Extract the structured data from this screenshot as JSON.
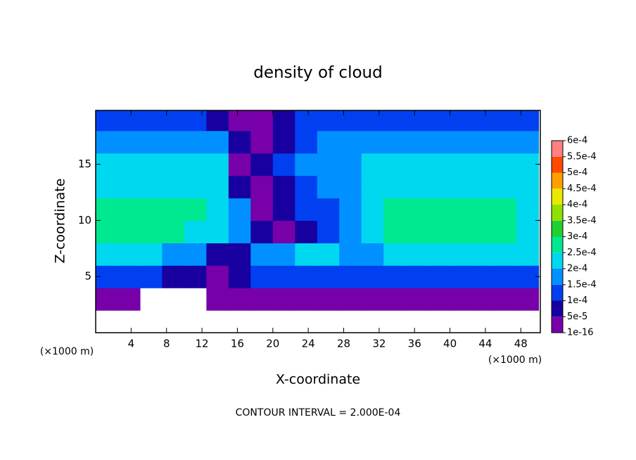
{
  "chart_data": {
    "type": "contourf",
    "title": "density of cloud",
    "xlabel": "X-coordinate",
    "ylabel": "Z-coordinate",
    "xunit_left": "(×1000 m)",
    "xunit_right": "(×1000 m)",
    "footnote": "CONTOUR INTERVAL = 2.000E-04",
    "xlim": [
      0,
      50.2
    ],
    "ylim": [
      0,
      19.8
    ],
    "xticks": [
      4,
      8,
      12,
      16,
      20,
      24,
      28,
      32,
      36,
      40,
      44,
      48
    ],
    "yticks": [
      5,
      10,
      15
    ],
    "colorbar_ticks": [
      {
        "value": 1e-16,
        "label": "1e-16"
      },
      {
        "value": 5e-05,
        "label": "5e-5"
      },
      {
        "value": 0.0001,
        "label": "1e-4"
      },
      {
        "value": 0.00015,
        "label": "1.5e-4"
      },
      {
        "value": 0.0002,
        "label": "2e-4"
      },
      {
        "value": 0.00025,
        "label": "2.5e-4"
      },
      {
        "value": 0.0003,
        "label": "3e-4"
      },
      {
        "value": 0.00035,
        "label": "3.5e-4"
      },
      {
        "value": 0.0004,
        "label": "4e-4"
      },
      {
        "value": 0.00045,
        "label": "4.5e-4"
      },
      {
        "value": 0.0005,
        "label": "5e-4"
      },
      {
        "value": 0.00055,
        "label": "5.5e-4"
      },
      {
        "value": 0.0006,
        "label": "6e-4"
      }
    ],
    "colors": [
      "#7800a8",
      "#1800a0",
      "#0040f0",
      "#0090ff",
      "#00d8f0",
      "#00e890",
      "#20d030",
      "#90e000",
      "#e8e800",
      "#ffa000",
      "#ff4800",
      "#ff8080"
    ],
    "x": [
      1.25,
      3.75,
      6.25,
      8.75,
      11.25,
      13.75,
      16.25,
      18.75,
      21.25,
      23.75,
      26.25,
      28.75,
      31.25,
      33.75,
      36.25,
      38.75,
      41.25,
      43.75,
      46.25,
      48.75
    ],
    "y": [
      1,
      3,
      5,
      7,
      9,
      11,
      13,
      15,
      17,
      19
    ],
    "z": [
      [
        null,
        null,
        null,
        null,
        null,
        null,
        null,
        null,
        null,
        null,
        null,
        null,
        null,
        null,
        null,
        null,
        null,
        null,
        null,
        null
      ],
      [
        1e-16,
        1e-16,
        null,
        null,
        null,
        1e-16,
        1e-16,
        1e-16,
        1e-16,
        1e-16,
        1e-16,
        1e-16,
        1e-16,
        1e-16,
        1e-16,
        1e-16,
        1e-16,
        1e-16,
        1e-16,
        1e-16
      ],
      [
        0.00012,
        0.00012,
        0.00011,
        9e-05,
        6e-05,
        4e-05,
        8e-05,
        0.00011,
        0.00012,
        0.00012,
        0.00011,
        0.00011,
        0.00012,
        0.00012,
        0.00013,
        0.00013,
        0.00012,
        0.00012,
        0.00012,
        0.00012
      ],
      [
        0.00021,
        0.00021,
        0.0002,
        0.00019,
        0.00016,
        7e-05,
        6e-05,
        0.00015,
        0.00018,
        0.0002,
        0.0002,
        0.00016,
        0.00019,
        0.0002,
        0.0002,
        0.0002,
        0.00021,
        0.00021,
        0.0002,
        0.0002
      ],
      [
        0.00025,
        0.00025,
        0.00025,
        0.00025,
        0.00024,
        0.00023,
        0.00015,
        6e-05,
        2e-05,
        6e-05,
        0.00012,
        0.00017,
        0.00023,
        0.00025,
        0.00026,
        0.00026,
        0.00026,
        0.00025,
        0.00025,
        0.00024
      ],
      [
        0.00025,
        0.00025,
        0.00025,
        0.00025,
        0.00025,
        0.00024,
        0.00018,
        1e-05,
        5e-05,
        0.0001,
        0.00014,
        0.00017,
        0.00023,
        0.00025,
        0.00025,
        0.00025,
        0.00025,
        0.00025,
        0.00025,
        0.00024
      ],
      [
        0.00024,
        0.00024,
        0.00024,
        0.00024,
        0.00024,
        0.00023,
        6e-05,
        1e-05,
        8e-05,
        0.00013,
        0.00016,
        0.00018,
        0.00023,
        0.00024,
        0.00024,
        0.00024,
        0.00024,
        0.00024,
        0.00024,
        0.00023
      ],
      [
        0.00023,
        0.00023,
        0.00023,
        0.00023,
        0.00022,
        0.0002,
        1e-05,
        5e-05,
        0.00011,
        0.00015,
        0.00017,
        0.00019,
        0.00022,
        0.00023,
        0.00023,
        0.00023,
        0.00023,
        0.00023,
        0.00023,
        0.00022
      ],
      [
        0.00017,
        0.00017,
        0.00017,
        0.00018,
        0.00018,
        0.00015,
        6e-05,
        1e-05,
        8e-05,
        0.00013,
        0.00016,
        0.00018,
        0.00019,
        0.00019,
        0.00018,
        0.00018,
        0.00019,
        0.00018,
        0.00018,
        0.00018
      ],
      [
        0.00011,
        0.00011,
        0.00011,
        0.00011,
        0.00011,
        8e-05,
        1e-05,
        3e-05,
        6e-05,
        0.0001,
        0.00013,
        0.00014,
        0.00014,
        0.00014,
        0.00013,
        0.00012,
        0.00012,
        0.00012,
        0.00011,
        0.00011
      ]
    ]
  }
}
